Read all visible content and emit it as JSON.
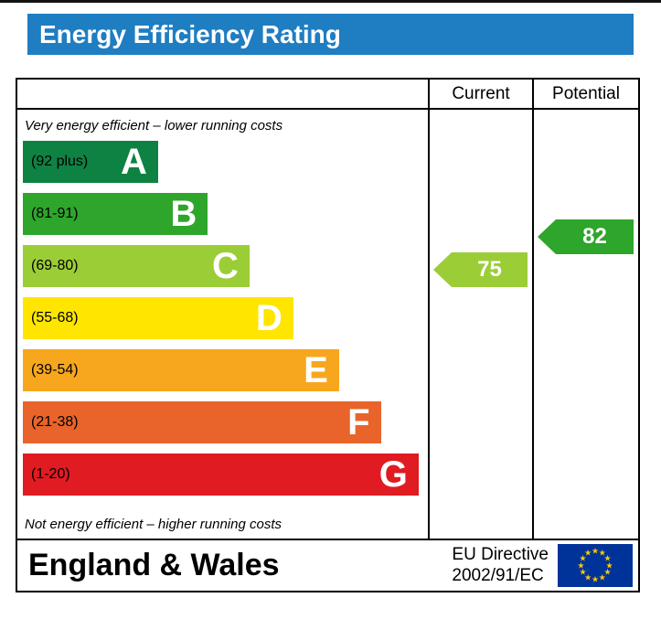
{
  "title": "Energy Efficiency Rating",
  "colors": {
    "title_bar": "#1f7dc2",
    "eu_flag_blue": "#003399",
    "eu_star_yellow": "#ffcc00"
  },
  "table": {
    "columns": [
      "Current",
      "Potential"
    ],
    "top_note": "Very energy efficient – lower running costs",
    "bottom_note": "Not energy efficient – higher running costs"
  },
  "bands": [
    {
      "letter": "A",
      "range": "(92 plus)",
      "color": "#0e8243",
      "width_pct": "34%"
    },
    {
      "letter": "B",
      "range": "(81-91)",
      "color": "#2ea52b",
      "width_pct": "46.5%"
    },
    {
      "letter": "C",
      "range": "(69-80)",
      "color": "#9bcd37",
      "width_pct": "57%"
    },
    {
      "letter": "D",
      "range": "(55-68)",
      "color": "#ffe500",
      "width_pct": "68%"
    },
    {
      "letter": "E",
      "range": "(39-54)",
      "color": "#f7a71e",
      "width_pct": "79.5%"
    },
    {
      "letter": "F",
      "range": "(21-38)",
      "color": "#e8642a",
      "width_pct": "90%"
    },
    {
      "letter": "G",
      "range": "(1-20)",
      "color": "#e01b22",
      "width_pct": "99.5%"
    }
  ],
  "ratings": {
    "current": {
      "value": 75,
      "band": "C",
      "color": "#9bcd37"
    },
    "potential": {
      "value": 82,
      "band": "B",
      "color": "#2ea52b"
    }
  },
  "footer": {
    "region": "England & Wales",
    "directive_line1": "EU Directive",
    "directive_line2": "2002/91/EC"
  },
  "chart_data": {
    "type": "bar",
    "title": "Energy Efficiency Rating",
    "categories": [
      "A",
      "B",
      "C",
      "D",
      "E",
      "F",
      "G"
    ],
    "band_ranges": [
      "92 plus",
      "81-91",
      "69-80",
      "55-68",
      "39-54",
      "21-38",
      "1-20"
    ],
    "band_colors": [
      "#0e8243",
      "#2ea52b",
      "#9bcd37",
      "#ffe500",
      "#f7a71e",
      "#e8642a",
      "#e01b22"
    ],
    "bar_lengths_pct": [
      34,
      46.5,
      57,
      68,
      79.5,
      90,
      99.5
    ],
    "series": [
      {
        "name": "Current",
        "value": 75,
        "band": "C"
      },
      {
        "name": "Potential",
        "value": 82,
        "band": "B"
      }
    ],
    "scale": [
      1,
      100
    ],
    "top_note": "Very energy efficient – lower running costs",
    "bottom_note": "Not energy efficient – higher running costs",
    "footer": "England & Wales | EU Directive 2002/91/EC"
  }
}
